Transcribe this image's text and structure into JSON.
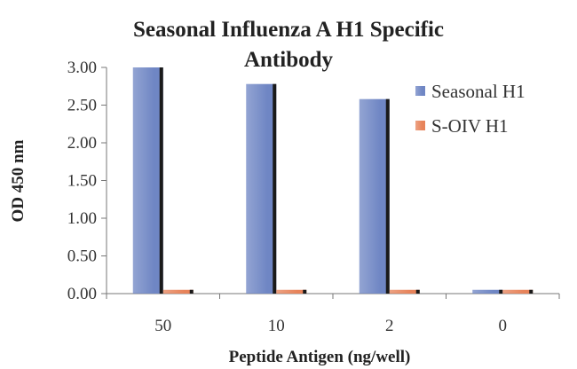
{
  "chart_data": {
    "type": "bar",
    "title_line1": "Seasonal Influenza A H1 Specific",
    "title_line2": "Antibody",
    "xlabel": "Peptide Antigen (ng/well)",
    "ylabel": "OD 450 nm",
    "categories": [
      "50",
      "10",
      "2",
      "0"
    ],
    "ylim": [
      0,
      3
    ],
    "yticks": [
      "0.00",
      "0.50",
      "1.00",
      "1.50",
      "2.00",
      "2.50",
      "3.00"
    ],
    "grid": false,
    "legend_position": "right",
    "series": [
      {
        "name": "Seasonal H1",
        "values": [
          3.0,
          2.78,
          2.58,
          0.05
        ],
        "color": "#6f86c4"
      },
      {
        "name": "S-OIV H1",
        "values": [
          0.05,
          0.05,
          0.05,
          0.05
        ],
        "color": "#e7835a"
      }
    ]
  }
}
